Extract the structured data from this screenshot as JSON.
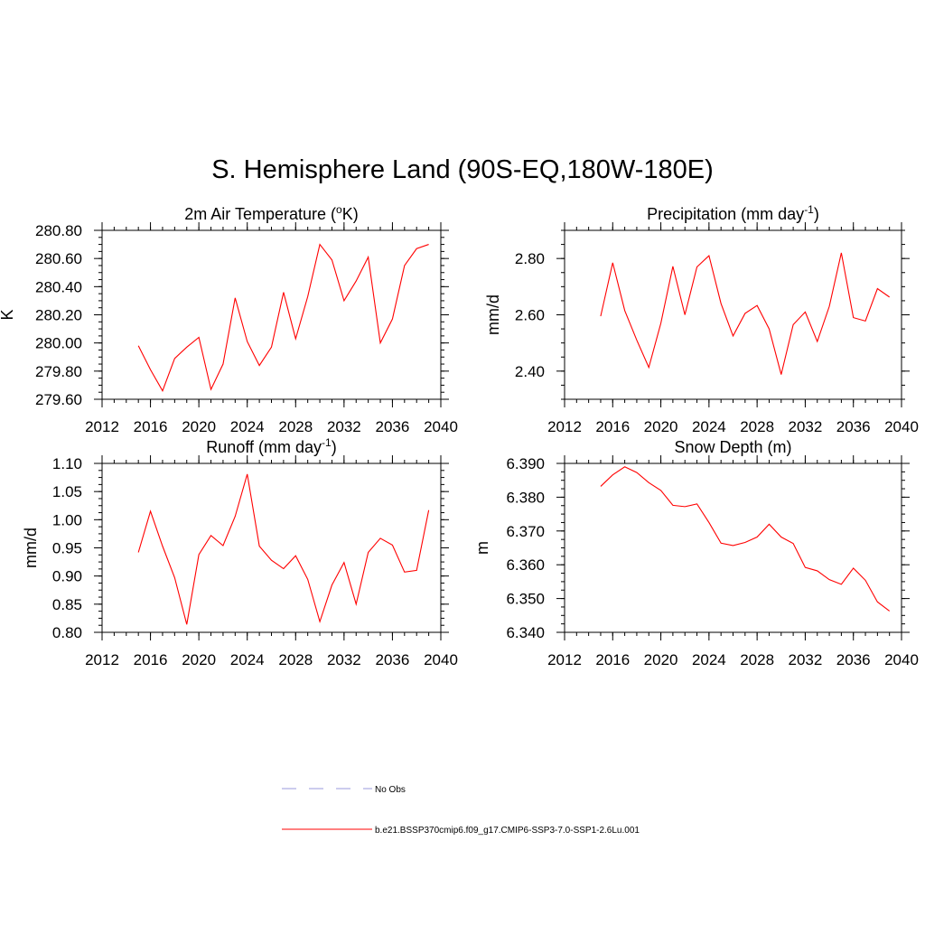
{
  "figure": {
    "title": "S. Hemisphere Land (90S-EQ,180W-180E)"
  },
  "legend": [
    {
      "label": "No Obs",
      "color": "#9999dd",
      "style": "dashed"
    },
    {
      "label": "b.e21.BSSP370cmip6.f09_g17.CMIP6-SSP3-7.0-SSP1-2.6Lu.001",
      "color": "#ff0000",
      "style": "solid"
    }
  ],
  "chart_data": [
    {
      "id": "temp",
      "type": "line",
      "title": "2m Air Temperature (°K)",
      "title_parts": [
        "2m Air Temperature (",
        "o",
        "K)"
      ],
      "title_style": "sup",
      "ylabel": "K",
      "xlim": [
        2012,
        2040
      ],
      "ylim": [
        279.6,
        280.8
      ],
      "xticks": [
        2012,
        2016,
        2020,
        2024,
        2028,
        2032,
        2036,
        2040
      ],
      "yticks": [
        279.6,
        279.8,
        280.0,
        280.2,
        280.4,
        280.6,
        280.8
      ],
      "ytick_decimals": 2,
      "grid": false,
      "x": [
        2015,
        2016,
        2017,
        2018,
        2019,
        2020,
        2021,
        2022,
        2023,
        2024,
        2025,
        2026,
        2027,
        2028,
        2029,
        2030,
        2031,
        2032,
        2033,
        2034,
        2035,
        2036,
        2037,
        2038,
        2039
      ],
      "series": [
        {
          "name": "b.e21.BSSP370cmip6.f09_g17.CMIP6-SSP3-7.0-SSP1-2.6Lu.001",
          "color": "#ff0000",
          "values": [
            279.98,
            279.81,
            279.66,
            279.89,
            279.97,
            280.04,
            279.67,
            279.85,
            280.32,
            280.01,
            279.84,
            279.97,
            280.36,
            280.03,
            280.33,
            280.7,
            280.59,
            280.3,
            280.44,
            280.61,
            280.0,
            280.17,
            280.55,
            280.67,
            280.7
          ]
        }
      ]
    },
    {
      "id": "precip",
      "type": "line",
      "title": "Precipitation (mm day-1)",
      "title_parts": [
        "Precipitation (mm day",
        "-1",
        ")"
      ],
      "title_style": "sup",
      "ylabel": "mm/d",
      "xlim": [
        2012,
        2040
      ],
      "ylim": [
        2.3,
        2.9
      ],
      "xticks": [
        2012,
        2016,
        2020,
        2024,
        2028,
        2032,
        2036,
        2040
      ],
      "yticks": [
        2.4,
        2.6,
        2.8
      ],
      "ytick_decimals": 2,
      "grid": false,
      "x": [
        2015,
        2016,
        2017,
        2018,
        2019,
        2020,
        2021,
        2022,
        2023,
        2024,
        2025,
        2026,
        2027,
        2028,
        2029,
        2030,
        2031,
        2032,
        2033,
        2034,
        2035,
        2036,
        2037,
        2038,
        2039
      ],
      "series": [
        {
          "name": "b.e21.BSSP370cmip6.f09_g17.CMIP6-SSP3-7.0-SSP1-2.6Lu.001",
          "color": "#ff0000",
          "values": [
            2.595,
            2.785,
            2.615,
            2.51,
            2.413,
            2.57,
            2.772,
            2.6,
            2.77,
            2.81,
            2.64,
            2.525,
            2.605,
            2.633,
            2.55,
            2.388,
            2.565,
            2.61,
            2.505,
            2.63,
            2.82,
            2.59,
            2.578,
            2.693,
            2.663
          ]
        }
      ]
    },
    {
      "id": "runoff",
      "type": "line",
      "title": "Runoff (mm day-1)",
      "title_parts": [
        "Runoff (mm day",
        "-1",
        ")"
      ],
      "title_style": "sup",
      "ylabel": "mm/d",
      "xlim": [
        2012,
        2040
      ],
      "ylim": [
        0.8,
        1.1
      ],
      "xticks": [
        2012,
        2016,
        2020,
        2024,
        2028,
        2032,
        2036,
        2040
      ],
      "yticks": [
        0.8,
        0.85,
        0.9,
        0.95,
        1.0,
        1.05,
        1.1
      ],
      "ytick_decimals": 2,
      "grid": false,
      "x": [
        2015,
        2016,
        2017,
        2018,
        2019,
        2020,
        2021,
        2022,
        2023,
        2024,
        2025,
        2026,
        2027,
        2028,
        2029,
        2030,
        2031,
        2032,
        2033,
        2034,
        2035,
        2036,
        2037,
        2038,
        2039
      ],
      "series": [
        {
          "name": "b.e21.BSSP370cmip6.f09_g17.CMIP6-SSP3-7.0-SSP1-2.6Lu.001",
          "color": "#ff0000",
          "values": [
            0.942,
            1.015,
            0.953,
            0.897,
            0.814,
            0.938,
            0.972,
            0.954,
            1.006,
            1.081,
            0.953,
            0.928,
            0.913,
            0.936,
            0.894,
            0.819,
            0.884,
            0.924,
            0.85,
            0.942,
            0.967,
            0.955,
            0.907,
            0.91,
            1.017
          ]
        }
      ]
    },
    {
      "id": "snow",
      "type": "line",
      "title": "Snow Depth (m)",
      "title_parts": [
        "Snow Depth (m)"
      ],
      "title_style": "plain",
      "ylabel": "m",
      "xlim": [
        2012,
        2040
      ],
      "ylim": [
        6.34,
        6.39
      ],
      "xticks": [
        2012,
        2016,
        2020,
        2024,
        2028,
        2032,
        2036,
        2040
      ],
      "yticks": [
        6.34,
        6.35,
        6.36,
        6.37,
        6.38,
        6.39
      ],
      "ytick_decimals": 3,
      "grid": false,
      "x": [
        2015,
        2016,
        2017,
        2018,
        2019,
        2020,
        2021,
        2022,
        2023,
        2024,
        2025,
        2026,
        2027,
        2028,
        2029,
        2030,
        2031,
        2032,
        2033,
        2034,
        2035,
        2036,
        2037,
        2038,
        2039
      ],
      "series": [
        {
          "name": "b.e21.BSSP370cmip6.f09_g17.CMIP6-SSP3-7.0-SSP1-2.6Lu.001",
          "color": "#ff0000",
          "values": [
            6.3832,
            6.3866,
            6.389,
            6.3873,
            6.3843,
            6.382,
            6.3776,
            6.3772,
            6.378,
            6.3725,
            6.3664,
            6.3657,
            6.3666,
            6.3682,
            6.372,
            6.3682,
            6.3663,
            6.3592,
            6.3582,
            6.3556,
            6.3542,
            6.359,
            6.3554,
            6.349,
            6.3463
          ]
        }
      ]
    }
  ]
}
